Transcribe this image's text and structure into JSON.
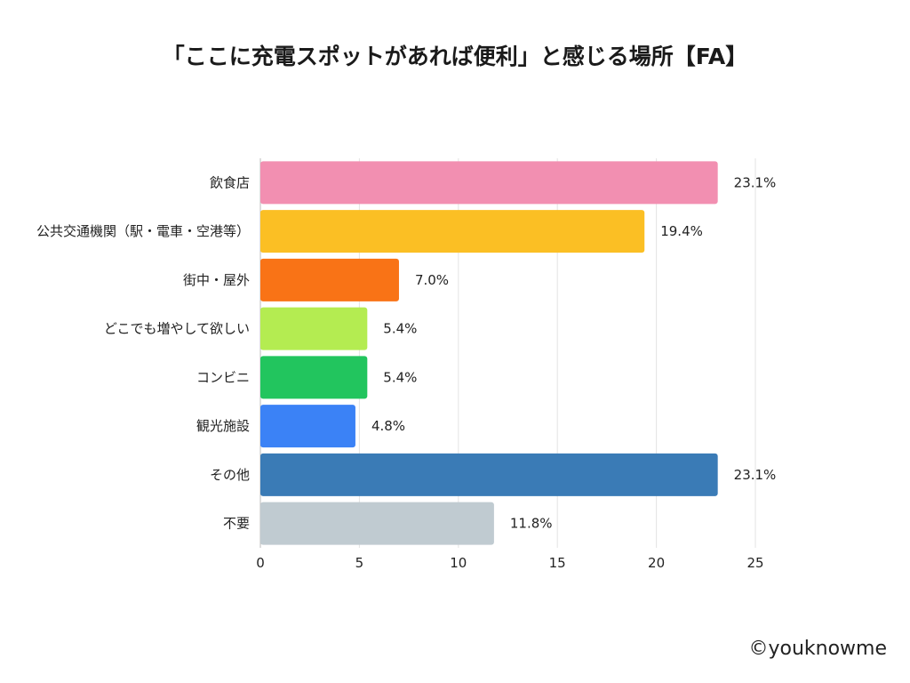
{
  "chart_data": {
    "type": "bar",
    "orientation": "horizontal",
    "title": "「ここに充電スポットがあれば便利」と感じる場所【FA】",
    "categories": [
      "飲食店",
      "公共交通機関（駅・電車・空港等）",
      "街中・屋外",
      "どこでも増やして欲しい",
      "コンビニ",
      "観光施設",
      "その他",
      "不要"
    ],
    "values": [
      23.1,
      19.4,
      7.0,
      5.4,
      5.4,
      4.8,
      23.1,
      11.8
    ],
    "value_labels": [
      "23.1%",
      "19.4%",
      "7.0%",
      "5.4%",
      "5.4%",
      "4.8%",
      "23.1%",
      "11.8%"
    ],
    "colors": [
      "#f28fb1",
      "#fbbf24",
      "#f97316",
      "#b4ec51",
      "#22c55e",
      "#3b82f6",
      "#3a7bb6",
      "#c0cbd1"
    ],
    "xlim": [
      0,
      25
    ],
    "xticks": [
      0,
      5,
      10,
      15,
      20,
      25
    ],
    "xlabel": "",
    "ylabel": "",
    "grid": true
  },
  "credit": "©youknowme"
}
